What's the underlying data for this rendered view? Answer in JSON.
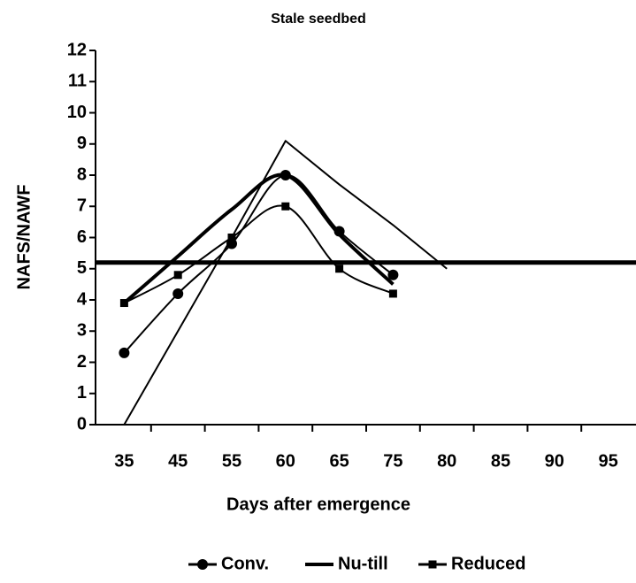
{
  "chart_data": {
    "type": "line",
    "title": "Stale seedbed",
    "x_label": "Days after emergence",
    "y_label": "NAFS/NAWF",
    "categories": [
      "35",
      "45",
      "55",
      "60",
      "65",
      "75",
      "80",
      "85",
      "90",
      "95"
    ],
    "series": [
      {
        "name": "Conv.",
        "color": "#000000",
        "marker": "circle",
        "smooth": true,
        "width": 2,
        "values": [
          2.3,
          4.2,
          5.8,
          8.0,
          6.2,
          4.8,
          null,
          null,
          null,
          null
        ]
      },
      {
        "name": "Nu-till",
        "color": "#000000",
        "marker": "none",
        "smooth": true,
        "width": 4,
        "values": [
          3.9,
          5.4,
          6.9,
          8.0,
          6.1,
          4.5,
          null,
          null,
          null,
          null
        ]
      },
      {
        "name": "Reduced",
        "color": "#000000",
        "marker": "square",
        "smooth": true,
        "width": 2,
        "values": [
          3.9,
          4.8,
          6.0,
          7.0,
          5.0,
          4.2,
          null,
          null,
          null,
          null
        ]
      },
      {
        "color": "#000000",
        "marker": "none",
        "smooth": false,
        "width": 2,
        "values": [
          0,
          3.0,
          6.0,
          9.1,
          7.7,
          6.4,
          5.0,
          null,
          null,
          null
        ]
      }
    ],
    "hline": 5.2,
    "ylim": [
      0,
      12
    ],
    "yticks": [
      0,
      1,
      2,
      3,
      4,
      5,
      6,
      7,
      8,
      9,
      10,
      11,
      12
    ],
    "grid": false,
    "legend": "bottom"
  }
}
